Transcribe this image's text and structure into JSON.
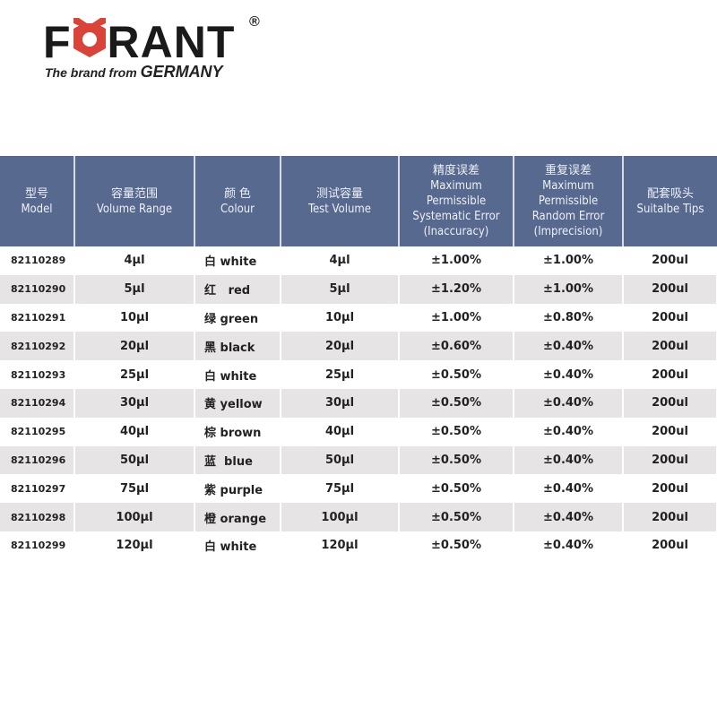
{
  "logo": {
    "brand": "FORANT",
    "registered": "®",
    "tagline": "The brand from",
    "country": "GERMANY",
    "colors": {
      "text": "#1a1a1a",
      "nut": "#d9443a"
    }
  },
  "table": {
    "header_color": "#57698f",
    "columns": [
      {
        "zh": "型号",
        "en": "Model"
      },
      {
        "zh": "容量范围",
        "en": "Volume Range"
      },
      {
        "zh": "颜 色",
        "en": "Colour"
      },
      {
        "zh": "测试容量",
        "en": "Test Volume"
      },
      {
        "zh": "精度误差",
        "en": "Maximum Permissible Systematic Error (Inaccuracy)"
      },
      {
        "zh": "重复误差",
        "en": "Maximum Permissible Random Error (Imprecision)"
      },
      {
        "zh": "配套吸头",
        "en": "Suitalbe Tips"
      }
    ],
    "rows": [
      [
        "82110289",
        "4µl",
        "白 white",
        "4µl",
        "±1.00%",
        "±1.00%",
        "200ul"
      ],
      [
        "82110290",
        "5µl",
        "红   red",
        "5µl",
        "±1.20%",
        "±1.00%",
        "200ul"
      ],
      [
        "82110291",
        "10µl",
        "绿 green",
        "10µl",
        "±1.00%",
        "±0.80%",
        "200ul"
      ],
      [
        "82110292",
        "20µl",
        "黑 black",
        "20µl",
        "±0.60%",
        "±0.40%",
        "200ul"
      ],
      [
        "82110293",
        "25µl",
        "白 white",
        "25µl",
        "±0.50%",
        "±0.40%",
        "200ul"
      ],
      [
        "82110294",
        "30µl",
        "黄 yellow",
        "30µl",
        "±0.50%",
        "±0.40%",
        "200ul"
      ],
      [
        "82110295",
        "40µl",
        "棕 brown",
        "40µl",
        "±0.50%",
        "±0.40%",
        "200ul"
      ],
      [
        "82110296",
        "50µl",
        "蓝  blue",
        "50µl",
        "±0.50%",
        "±0.40%",
        "200ul"
      ],
      [
        "82110297",
        "75µl",
        "紫 purple",
        "75µl",
        "±0.50%",
        "±0.40%",
        "200ul"
      ],
      [
        "82110298",
        "100µl",
        "橙 orange",
        "100µl",
        "±0.50%",
        "±0.40%",
        "200ul"
      ],
      [
        "82110299",
        "120µl",
        "白 white",
        "120µl",
        "±0.50%",
        "±0.40%",
        "200ul"
      ]
    ]
  }
}
